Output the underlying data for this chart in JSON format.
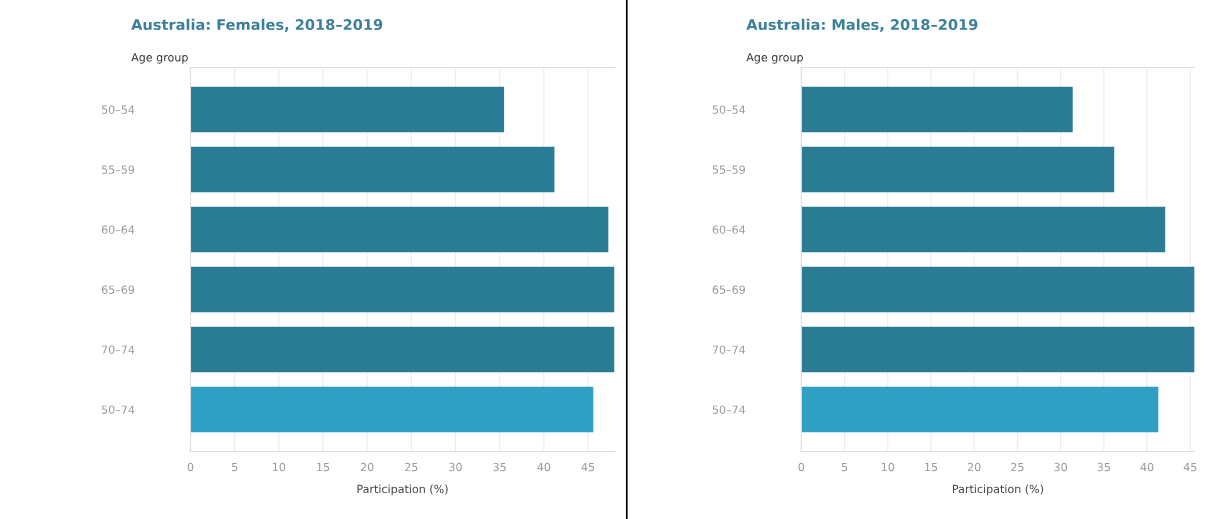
{
  "chart_data": [
    {
      "type": "bar",
      "orientation": "horizontal",
      "title": "Australia: Females, 2018–2019",
      "ylabel": "Age group",
      "xlabel": "Participation (%)",
      "categories": [
        "50–54",
        "55–59",
        "60–64",
        "65–69",
        "70–74",
        "50–74"
      ],
      "values": [
        35.5,
        41.2,
        47.3,
        48,
        48,
        45.6
      ],
      "colors": [
        "#2a7b94",
        "#2a7b94",
        "#2a7b94",
        "#2a7b94",
        "#2a7b94",
        "#2f9fc3"
      ],
      "xlim": [
        0,
        48
      ],
      "xticks": [
        0,
        5,
        10,
        15,
        20,
        25,
        30,
        35,
        40,
        45
      ],
      "grid": "x"
    },
    {
      "type": "bar",
      "orientation": "horizontal",
      "title": "Australia: Males, 2018–2019",
      "ylabel": "Age group",
      "xlabel": "Participation (%)",
      "categories": [
        "50–54",
        "55–59",
        "60–64",
        "65–69",
        "70–74",
        "50–74"
      ],
      "values": [
        31.4,
        36.2,
        42.1,
        45.5,
        45.5,
        41.3
      ],
      "colors": [
        "#2a7b94",
        "#2a7b94",
        "#2a7b94",
        "#2a7b94",
        "#2a7b94",
        "#2f9fc3"
      ],
      "xlim": [
        0,
        45.5
      ],
      "xticks": [
        0,
        5,
        10,
        15,
        20,
        25,
        30,
        35,
        40,
        45
      ],
      "grid": "x"
    }
  ]
}
